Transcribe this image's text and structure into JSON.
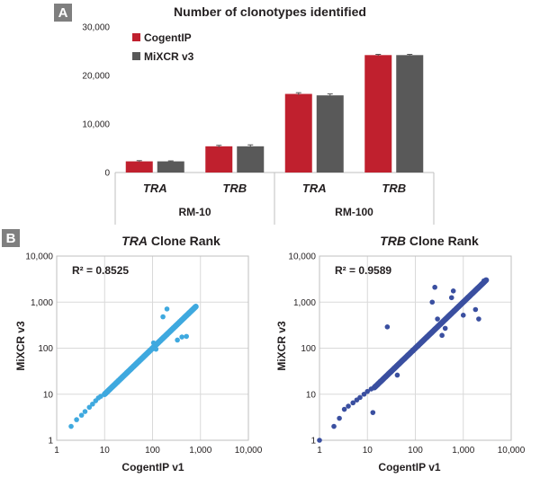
{
  "panel_a": {
    "letter": "A",
    "title": "Number of clonotypes identified",
    "legend": [
      {
        "label": "CogentIP",
        "color": "#c0202e"
      },
      {
        "label": "MiXCR v3",
        "color": "#595959"
      }
    ]
  },
  "panel_b": {
    "letter": "B",
    "left": {
      "title_italic": "TRA",
      "title_rest": " Clone Rank",
      "r2": "R² = 0.8525",
      "xlabel": "CogentIP v1",
      "ylabel": "MiXCR v3",
      "color": "#3fa9df"
    },
    "right": {
      "title_italic": "TRB",
      "title_rest": " Clone Rank",
      "r2": "R² = 0.9589",
      "xlabel": "CogentIP v1",
      "ylabel": "MiXCR v3",
      "color": "#3a4fa0"
    }
  },
  "chart_data": [
    {
      "type": "bar",
      "title": "Number of clonotypes identified",
      "categories": [
        "TRA",
        "TRB",
        "TRA",
        "TRB"
      ],
      "groups": [
        {
          "label": "RM-10",
          "categories": [
            0,
            1
          ]
        },
        {
          "label": "RM-100",
          "categories": [
            2,
            3
          ]
        }
      ],
      "series": [
        {
          "name": "CogentIP",
          "values": [
            2300,
            5400,
            16200,
            24200
          ],
          "error": [
            150,
            200,
            250,
            150
          ]
        },
        {
          "name": "MiXCR v3",
          "values": [
            2300,
            5400,
            15900,
            24200
          ],
          "error": [
            100,
            300,
            300,
            150
          ]
        }
      ],
      "ylim": [
        0,
        30000
      ],
      "yticks": [
        "0",
        "10,000",
        "20,000",
        "30,000"
      ]
    },
    {
      "type": "scatter",
      "title": "TRA Clone Rank",
      "xlabel": "CogentIP v1",
      "ylabel": "MiXCR v3",
      "xscale": "log",
      "yscale": "log",
      "xlim": [
        1,
        10000
      ],
      "ylim": [
        1,
        10000
      ],
      "xticks": [
        "1",
        "10",
        "100",
        "1,000",
        "10,000"
      ],
      "yticks": [
        "1",
        "10",
        "100",
        "1,000",
        "10,000"
      ],
      "annotation": "R² = 0.8525",
      "diagonal_range": [
        10,
        800
      ],
      "points": [
        [
          2,
          2
        ],
        [
          2.6,
          2.8
        ],
        [
          3.3,
          3.5
        ],
        [
          3.9,
          4.2
        ],
        [
          4.8,
          5.2
        ],
        [
          5.6,
          6.1
        ],
        [
          6.5,
          7.2
        ],
        [
          7.4,
          8.3
        ],
        [
          8.3,
          9
        ],
        [
          105,
          130
        ],
        [
          118,
          95
        ],
        [
          165,
          480
        ],
        [
          200,
          710
        ],
        [
          330,
          150
        ],
        [
          410,
          175
        ],
        [
          510,
          180
        ]
      ]
    },
    {
      "type": "scatter",
      "title": "TRB Clone Rank",
      "xlabel": "CogentIP v1",
      "ylabel": "MiXCR v3",
      "xscale": "log",
      "yscale": "log",
      "xlim": [
        1,
        10000
      ],
      "ylim": [
        1,
        10000
      ],
      "xticks": [
        "1",
        "10",
        "100",
        "1,000",
        "10,000"
      ],
      "yticks": [
        "1",
        "10",
        "100",
        "1,000",
        "10,000"
      ],
      "annotation": "R² = 0.9589",
      "diagonal_range": [
        14,
        3000
      ],
      "points": [
        [
          1,
          1
        ],
        [
          2,
          2
        ],
        [
          2.6,
          3
        ],
        [
          3.3,
          4.7
        ],
        [
          4,
          5.5
        ],
        [
          5,
          6.5
        ],
        [
          6,
          7.5
        ],
        [
          7,
          8.5
        ],
        [
          8.5,
          10
        ],
        [
          10,
          11.5
        ],
        [
          12,
          13
        ],
        [
          13,
          4
        ],
        [
          26,
          290
        ],
        [
          42,
          26
        ],
        [
          225,
          1000
        ],
        [
          255,
          2100
        ],
        [
          290,
          430
        ],
        [
          360,
          190
        ],
        [
          420,
          270
        ],
        [
          570,
          1250
        ],
        [
          620,
          1750
        ],
        [
          1000,
          520
        ],
        [
          1800,
          690
        ],
        [
          2100,
          430
        ],
        [
          2700,
          2900
        ]
      ]
    }
  ]
}
